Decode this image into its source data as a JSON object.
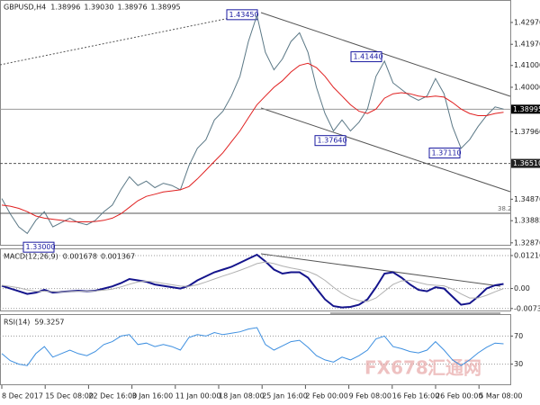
{
  "chart_data": [
    {
      "type": "line",
      "title": "GBPUSD,H4",
      "readings": [
        {
          "value": 1.38996,
          "label": "1.38996"
        },
        {
          "value": 1.3903,
          "label": "1.39030"
        },
        {
          "value": 1.38976,
          "label": "1.38976"
        },
        {
          "value": 1.38995,
          "label": "1.38995"
        }
      ],
      "ylim": [
        1.3278,
        1.44
      ],
      "yticks": [
        {
          "value": 1.4297,
          "label": "1.42970"
        },
        {
          "value": 1.4197,
          "label": "1.41970"
        },
        {
          "value": 1.41,
          "label": "1.41000"
        },
        {
          "value": 1.4,
          "label": "1.40000"
        },
        {
          "value": 1.3796,
          "label": "1.37960"
        },
        {
          "value": 1.3487,
          "label": "1.34870"
        },
        {
          "value": 1.33885,
          "label": "1.33885"
        },
        {
          "value": 1.3287,
          "label": "1.32870"
        }
      ],
      "current_price": 1.38995,
      "support_level": {
        "value": 1.3651,
        "label": "1.36510"
      },
      "fib_label": "38.2",
      "annotations": [
        {
          "value": 1.4345,
          "label": "1.43450"
        },
        {
          "value": 1.4144,
          "label": "1.41440"
        },
        {
          "value": 1.3764,
          "label": "1.37640"
        },
        {
          "value": 1.3711,
          "label": "1.37110"
        },
        {
          "value": 1.33,
          "label": "1.33000"
        }
      ],
      "series": [
        {
          "color": "#5b7886",
          "values": [
            1.349,
            1.342,
            1.336,
            1.333,
            1.339,
            1.343,
            1.336,
            1.338,
            1.34,
            1.338,
            1.337,
            1.339,
            1.343,
            1.346,
            1.353,
            1.359,
            1.355,
            1.357,
            1.354,
            1.356,
            1.355,
            1.353,
            1.364,
            1.372,
            1.376,
            1.385,
            1.389,
            1.396,
            1.405,
            1.421,
            1.433,
            1.416,
            1.408,
            1.413,
            1.421,
            1.425,
            1.416,
            1.4,
            1.388,
            1.38,
            1.385,
            1.38,
            1.384,
            1.39,
            1.405,
            1.412,
            1.402,
            1.399,
            1.396,
            1.394,
            1.396,
            1.404,
            1.397,
            1.382,
            1.372,
            1.376,
            1.382,
            1.387,
            1.391,
            1.39
          ]
        },
        {
          "color": "#e02020",
          "values": [
            1.346,
            1.3455,
            1.3445,
            1.343,
            1.341,
            1.34,
            1.3395,
            1.339,
            1.3385,
            1.3383,
            1.3383,
            1.3385,
            1.339,
            1.34,
            1.342,
            1.345,
            1.348,
            1.35,
            1.351,
            1.352,
            1.3525,
            1.353,
            1.3545,
            1.358,
            1.362,
            1.366,
            1.37,
            1.375,
            1.38,
            1.386,
            1.392,
            1.396,
            1.4,
            1.403,
            1.407,
            1.41,
            1.411,
            1.409,
            1.405,
            1.4,
            1.396,
            1.392,
            1.389,
            1.388,
            1.39,
            1.395,
            1.397,
            1.3975,
            1.397,
            1.396,
            1.3955,
            1.396,
            1.3955,
            1.393,
            1.39,
            1.388,
            1.387,
            1.387,
            1.388,
            1.3885
          ]
        }
      ]
    },
    {
      "type": "line",
      "title": "MACD(12,26,9)",
      "readings": [
        0.001678,
        0.001367
      ],
      "ylim": [
        -0.00812,
        0.01448
      ],
      "yticks": [
        0.012164,
        {
          "value": 0,
          "label": "0.00"
        },
        -0.007384
      ],
      "series": [
        {
          "color": "#14148c",
          "values": [
            0.001,
            0.0,
            -0.001,
            -0.002,
            -0.0015,
            -0.0005,
            -0.0015,
            -0.0012,
            -0.001,
            -0.0008,
            -0.001,
            -0.0008,
            0.0,
            0.0008,
            0.002,
            0.0035,
            0.003,
            0.0025,
            0.0015,
            0.001,
            0.0005,
            0.0,
            0.001,
            0.003,
            0.0045,
            0.006,
            0.007,
            0.008,
            0.0095,
            0.011,
            0.0125,
            0.01,
            0.007,
            0.0055,
            0.006,
            0.006,
            0.004,
            0.0,
            -0.004,
            -0.0065,
            -0.007,
            -0.0068,
            -0.006,
            -0.004,
            0.0005,
            0.0055,
            0.006,
            0.004,
            0.0015,
            -0.0005,
            -0.001,
            0.0005,
            0.0,
            -0.003,
            -0.006,
            -0.0055,
            -0.003,
            0.0,
            0.0012,
            0.0017
          ]
        },
        {
          "color": "#b0b0b0",
          "values": [
            0.0012,
            0.0008,
            0.0003,
            -0.0005,
            -0.001,
            -0.001,
            -0.0011,
            -0.0012,
            -0.0011,
            -0.001,
            -0.001,
            -0.0009,
            -0.0006,
            -0.0002,
            0.0006,
            0.0016,
            0.0024,
            0.0027,
            0.0024,
            0.0019,
            0.0014,
            0.0009,
            0.0008,
            0.0014,
            0.0024,
            0.0035,
            0.0046,
            0.0056,
            0.0067,
            0.0079,
            0.0092,
            0.0098,
            0.0092,
            0.0083,
            0.0076,
            0.007,
            0.0063,
            0.005,
            0.003,
            0.0005,
            -0.0018,
            -0.0035,
            -0.0045,
            -0.0048,
            -0.0035,
            -0.001,
            0.0015,
            0.0028,
            0.003,
            0.0022,
            0.0015,
            0.0012,
            0.001,
            -0.0002,
            -0.002,
            -0.0035,
            -0.0035,
            -0.0025,
            -0.0012,
            0.0
          ]
        }
      ]
    },
    {
      "type": "line",
      "title": "RSI(14)",
      "readings": [
        59.3257
      ],
      "ylim": [
        0,
        100
      ],
      "yticks": [
        70,
        30
      ],
      "watermark": [
        "FX678",
        "汇通网"
      ],
      "x_labels": [
        "8 Dec 2017",
        "15 Dec 08:00",
        "22 Dec 16:00",
        "3 Jan 16:00",
        "11 Jan 00:00",
        "18 Jan 08:00",
        "25 Jan 16:00",
        "2 Feb 00:00",
        "9 Feb 08:00",
        "16 Feb 16:00",
        "26 Feb 00:00",
        "5 Mar 08:00"
      ],
      "series": [
        {
          "color": "#3d8fe0",
          "values": [
            45,
            35,
            30,
            28,
            45,
            55,
            40,
            45,
            50,
            45,
            42,
            48,
            58,
            62,
            70,
            72,
            58,
            60,
            55,
            58,
            55,
            50,
            68,
            72,
            70,
            75,
            72,
            74,
            76,
            80,
            82,
            58,
            50,
            56,
            62,
            64,
            54,
            42,
            36,
            33,
            40,
            36,
            42,
            50,
            66,
            70,
            55,
            52,
            48,
            46,
            50,
            62,
            50,
            36,
            28,
            36,
            46,
            54,
            60,
            59
          ]
        }
      ]
    }
  ]
}
